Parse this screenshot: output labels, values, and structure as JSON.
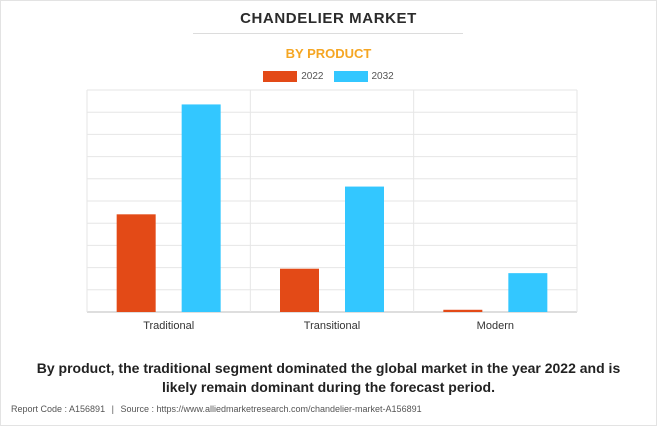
{
  "header": {
    "title": "CHANDELIER MARKET",
    "subtitle": "BY PRODUCT"
  },
  "chart_data": {
    "type": "bar",
    "title": "CHANDELIER MARKET",
    "subtitle": "BY PRODUCT",
    "categories": [
      "Traditional",
      "Transitional",
      "Modern"
    ],
    "series": [
      {
        "name": "2022",
        "color": "#e34a17",
        "values": [
          44,
          19.5,
          1
        ]
      },
      {
        "name": "2032",
        "color": "#33c7ff",
        "values": [
          93.5,
          56.5,
          17.5
        ]
      }
    ],
    "ylim": [
      0,
      100
    ],
    "grid": true,
    "legend_position": "top-center",
    "show_y_tick_labels": false
  },
  "caption": "By product, the traditional segment dominated the global market in the year 2022 and is likely remain dominant during the forecast period.",
  "footer": {
    "report_code": "Report Code : A156891",
    "separator": "|",
    "source": "Source : https://www.alliedmarketresearch.com/chandelier-market-A156891"
  }
}
